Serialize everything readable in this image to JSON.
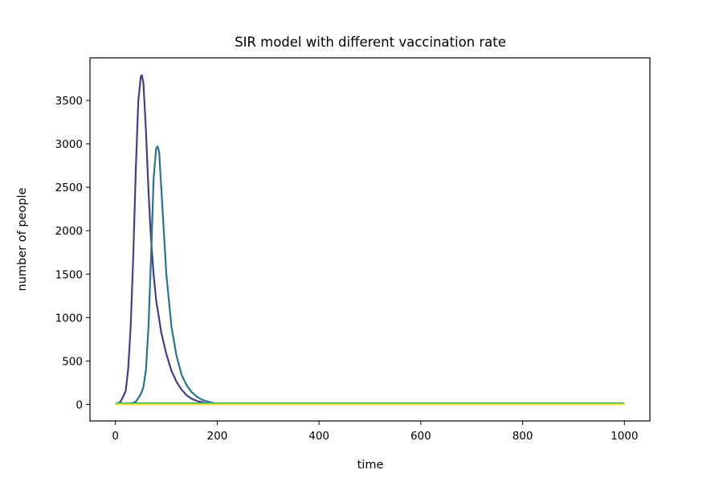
{
  "chart_data": {
    "type": "line",
    "title": "SIR model with different vaccination rate",
    "xlabel": "time",
    "ylabel": "number of people",
    "xlim": [
      -50,
      1050
    ],
    "ylim": [
      -190,
      3990
    ],
    "xticks": [
      0,
      200,
      400,
      600,
      800,
      1000
    ],
    "yticks": [
      0,
      500,
      1000,
      1500,
      2000,
      2500,
      3000,
      3500
    ],
    "grid": false,
    "legend": "none",
    "series": [
      {
        "color": "#433e85",
        "x": [
          0,
          10,
          20,
          25,
          30,
          35,
          40,
          45,
          50,
          52,
          55,
          60,
          65,
          70,
          75,
          80,
          90,
          100,
          110,
          120,
          130,
          140,
          150,
          160,
          170,
          180,
          200,
          300,
          1000
        ],
        "y": [
          0,
          30,
          150,
          400,
          900,
          1700,
          2700,
          3500,
          3780,
          3790,
          3700,
          3150,
          2450,
          1900,
          1500,
          1200,
          830,
          580,
          390,
          260,
          170,
          105,
          65,
          40,
          25,
          12,
          5,
          0,
          0
        ]
      },
      {
        "color": "#2c728e",
        "x": [
          0,
          30,
          40,
          50,
          55,
          60,
          65,
          70,
          75,
          80,
          83,
          86,
          90,
          95,
          100,
          110,
          120,
          130,
          140,
          150,
          160,
          170,
          180,
          190,
          200,
          220,
          300,
          1000
        ],
        "y": [
          0,
          10,
          30,
          120,
          200,
          400,
          900,
          1700,
          2600,
          2950,
          2970,
          2900,
          2500,
          2000,
          1500,
          900,
          560,
          340,
          220,
          140,
          90,
          55,
          35,
          20,
          10,
          3,
          0,
          0
        ]
      },
      {
        "color": "#28ae80",
        "x": [
          0,
          1000
        ],
        "y": [
          12,
          12
        ]
      },
      {
        "color": "#fde725",
        "x": [
          0,
          1000
        ],
        "y": [
          0,
          0
        ]
      }
    ]
  }
}
